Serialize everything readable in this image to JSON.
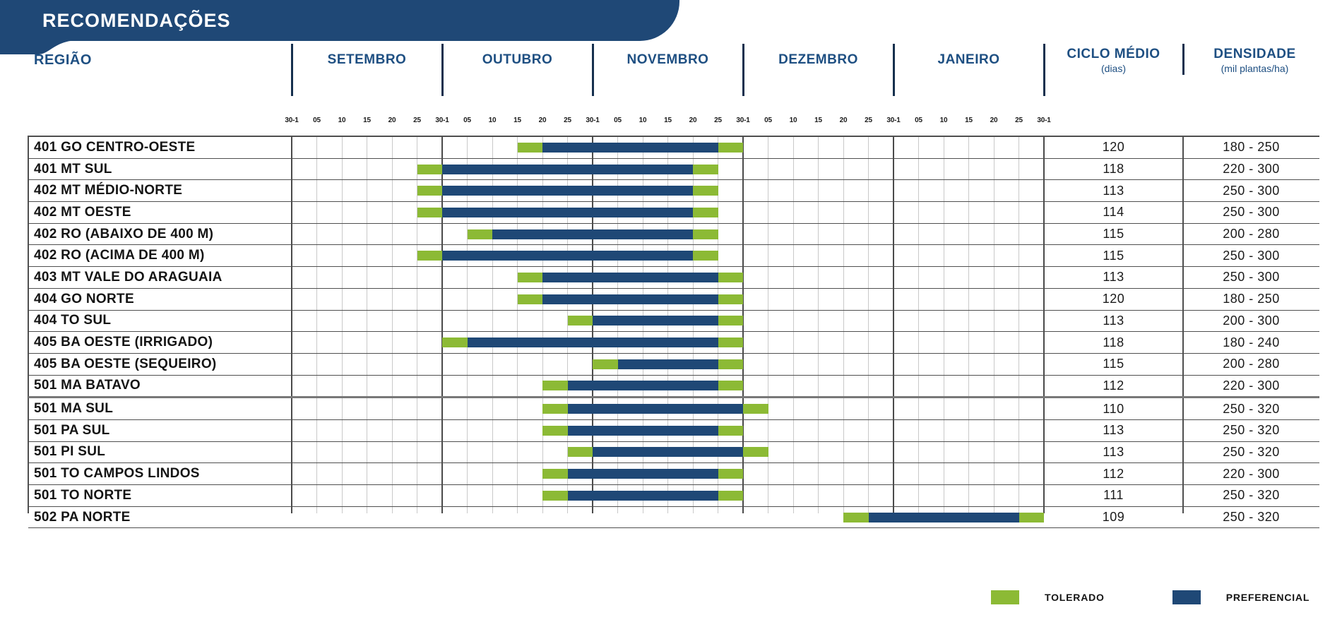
{
  "title": "RECOMENDAÇÕES",
  "colors": {
    "banner_blue": "#1F4876",
    "header_text_blue": "#1E4F82",
    "preferencial_blue": "#1F4876",
    "tolerado_green": "#8CBA35"
  },
  "header": {
    "region_label": "REGIÃO",
    "months": [
      "SETEMBRO",
      "OUTUBRO",
      "NOVEMBRO",
      "DEZEMBRO",
      "JANEIRO"
    ],
    "ciclo_label": "CICLO MÉDIO",
    "ciclo_sub": "(dias)",
    "densidade_label": "DENSIDADE",
    "densidade_sub": "(mil plantas/ha)"
  },
  "legend": [
    {
      "label": "TOLERADO",
      "color_key": "tolerado_green"
    },
    {
      "label": "PREFERENCIAL",
      "color_key": "preferencial_blue"
    }
  ],
  "chart_data": {
    "type": "gantt",
    "tick_labels": [
      "30-1",
      "05",
      "10",
      "15",
      "20",
      "25",
      "30-1",
      "05",
      "10",
      "15",
      "20",
      "25",
      "30-1",
      "05",
      "10",
      "15",
      "20",
      "25",
      "30-1",
      "05",
      "10",
      "15",
      "20",
      "25",
      "30-1",
      "05",
      "10",
      "15",
      "20",
      "25",
      "30-1"
    ],
    "ticks_per_month": 6,
    "axis_note": "ticks are 5-day boundaries from Sep 1 (index 0) to Feb 1 (index 30)",
    "rows": [
      {
        "name": "401 GO CENTRO-OESTE",
        "segments": [
          {
            "type": "tolerado",
            "start": 9,
            "end": 10
          },
          {
            "type": "preferencial",
            "start": 10,
            "end": 17
          },
          {
            "type": "tolerado",
            "start": 17,
            "end": 18
          }
        ],
        "ciclo": "120",
        "densidade": "180 - 250"
      },
      {
        "name": "401 MT SUL",
        "segments": [
          {
            "type": "tolerado",
            "start": 5,
            "end": 6
          },
          {
            "type": "preferencial",
            "start": 6,
            "end": 16
          },
          {
            "type": "tolerado",
            "start": 16,
            "end": 17
          }
        ],
        "ciclo": "118",
        "densidade": "220 - 300"
      },
      {
        "name": "402 MT MÉDIO-NORTE",
        "segments": [
          {
            "type": "tolerado",
            "start": 5,
            "end": 6
          },
          {
            "type": "preferencial",
            "start": 6,
            "end": 16
          },
          {
            "type": "tolerado",
            "start": 16,
            "end": 17
          }
        ],
        "ciclo": "113",
        "densidade": "250 - 300"
      },
      {
        "name": "402 MT OESTE",
        "segments": [
          {
            "type": "tolerado",
            "start": 5,
            "end": 6
          },
          {
            "type": "preferencial",
            "start": 6,
            "end": 16
          },
          {
            "type": "tolerado",
            "start": 16,
            "end": 17
          }
        ],
        "ciclo": "114",
        "densidade": "250 - 300"
      },
      {
        "name": "402 RO (ABAIXO DE 400 M)",
        "segments": [
          {
            "type": "tolerado",
            "start": 7,
            "end": 8
          },
          {
            "type": "preferencial",
            "start": 8,
            "end": 16
          },
          {
            "type": "tolerado",
            "start": 16,
            "end": 17
          }
        ],
        "ciclo": "115",
        "densidade": "200 - 280"
      },
      {
        "name": "402 RO (ACIMA DE 400 M)",
        "segments": [
          {
            "type": "tolerado",
            "start": 5,
            "end": 6
          },
          {
            "type": "preferencial",
            "start": 6,
            "end": 16
          },
          {
            "type": "tolerado",
            "start": 16,
            "end": 17
          }
        ],
        "ciclo": "115",
        "densidade": "250 - 300"
      },
      {
        "name": "403 MT VALE DO ARAGUAIA",
        "segments": [
          {
            "type": "tolerado",
            "start": 9,
            "end": 10
          },
          {
            "type": "preferencial",
            "start": 10,
            "end": 17
          },
          {
            "type": "tolerado",
            "start": 17,
            "end": 18
          }
        ],
        "ciclo": "113",
        "densidade": "250 - 300"
      },
      {
        "name": "404 GO NORTE",
        "segments": [
          {
            "type": "tolerado",
            "start": 9,
            "end": 10
          },
          {
            "type": "preferencial",
            "start": 10,
            "end": 17
          },
          {
            "type": "tolerado",
            "start": 17,
            "end": 18
          }
        ],
        "ciclo": "120",
        "densidade": "180 - 250"
      },
      {
        "name": "404 TO SUL",
        "segments": [
          {
            "type": "tolerado",
            "start": 11,
            "end": 12
          },
          {
            "type": "preferencial",
            "start": 12,
            "end": 17
          },
          {
            "type": "tolerado",
            "start": 17,
            "end": 18
          }
        ],
        "ciclo": "113",
        "densidade": "200 - 300"
      },
      {
        "name": "405 BA OESTE (IRRIGADO)",
        "segments": [
          {
            "type": "tolerado",
            "start": 6,
            "end": 7
          },
          {
            "type": "preferencial",
            "start": 7,
            "end": 17
          },
          {
            "type": "tolerado",
            "start": 17,
            "end": 18
          }
        ],
        "ciclo": "118",
        "densidade": "180 - 240"
      },
      {
        "name": "405 BA OESTE (SEQUEIRO)",
        "segments": [
          {
            "type": "tolerado",
            "start": 12,
            "end": 13
          },
          {
            "type": "preferencial",
            "start": 13,
            "end": 17
          },
          {
            "type": "tolerado",
            "start": 17,
            "end": 18
          }
        ],
        "ciclo": "115",
        "densidade": "200 - 280"
      },
      {
        "name": "501 MA BATAVO",
        "segments": [
          {
            "type": "tolerado",
            "start": 10,
            "end": 11
          },
          {
            "type": "preferencial",
            "start": 11,
            "end": 17
          },
          {
            "type": "tolerado",
            "start": 17,
            "end": 18
          }
        ],
        "ciclo": "112",
        "densidade": "220 - 300"
      },
      {
        "name": "501 MA SUL",
        "segments": [
          {
            "type": "tolerado",
            "start": 10,
            "end": 11
          },
          {
            "type": "preferencial",
            "start": 11,
            "end": 18
          },
          {
            "type": "tolerado",
            "start": 18,
            "end": 19
          }
        ],
        "ciclo": "110",
        "densidade": "250 - 320"
      },
      {
        "name": "501 PA SUL",
        "segments": [
          {
            "type": "tolerado",
            "start": 10,
            "end": 11
          },
          {
            "type": "preferencial",
            "start": 11,
            "end": 17
          },
          {
            "type": "tolerado",
            "start": 17,
            "end": 18
          }
        ],
        "ciclo": "113",
        "densidade": "250 - 320"
      },
      {
        "name": "501 PI SUL",
        "segments": [
          {
            "type": "tolerado",
            "start": 11,
            "end": 12
          },
          {
            "type": "preferencial",
            "start": 12,
            "end": 18
          },
          {
            "type": "tolerado",
            "start": 18,
            "end": 19
          }
        ],
        "ciclo": "113",
        "densidade": "250 - 320"
      },
      {
        "name": "501 TO CAMPOS LINDOS",
        "segments": [
          {
            "type": "tolerado",
            "start": 10,
            "end": 11
          },
          {
            "type": "preferencial",
            "start": 11,
            "end": 17
          },
          {
            "type": "tolerado",
            "start": 17,
            "end": 18
          }
        ],
        "ciclo": "112",
        "densidade": "220 - 300"
      },
      {
        "name": "501 TO NORTE",
        "segments": [
          {
            "type": "tolerado",
            "start": 10,
            "end": 11
          },
          {
            "type": "preferencial",
            "start": 11,
            "end": 17
          },
          {
            "type": "tolerado",
            "start": 17,
            "end": 18
          }
        ],
        "ciclo": "111",
        "densidade": "250 - 320"
      },
      {
        "name": "502 PA NORTE",
        "segments": [
          {
            "type": "tolerado",
            "start": 22,
            "end": 23
          },
          {
            "type": "preferencial",
            "start": 23,
            "end": 29
          },
          {
            "type": "tolerado",
            "start": 29,
            "end": 30
          }
        ],
        "ciclo": "109",
        "densidade": "250 - 320"
      }
    ]
  }
}
